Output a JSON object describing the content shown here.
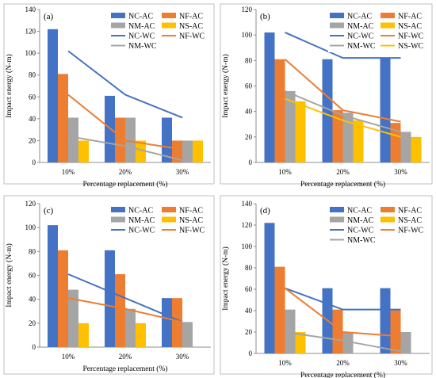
{
  "figure": {
    "colors": {
      "NC-AC": "#4472C4",
      "NF-AC": "#ED7D31",
      "NM-AC": "#A5A5A5",
      "NS-AC": "#FFC000",
      "NC-WC": "#4472C4",
      "NF-WC": "#ED7D31",
      "NM-WC": "#A5A5A5",
      "NS-WC": "#FFC000"
    }
  },
  "chart_data": [
    {
      "panel_label": "(a)",
      "type": "bar",
      "categories": [
        "10%",
        "20%",
        "30%"
      ],
      "xlabel": "Percentage replacement (%)",
      "ylabel": "Impact energy (N-m)",
      "ylim": [
        0,
        140
      ],
      "yticks": [
        0,
        20,
        40,
        60,
        80,
        100,
        120,
        140
      ],
      "legend_columns": 2,
      "series": [
        {
          "name": "NC-AC",
          "kind": "bar",
          "values": [
            122,
            61,
            41
          ]
        },
        {
          "name": "NF-AC",
          "kind": "bar",
          "values": [
            81,
            41,
            20
          ]
        },
        {
          "name": "NM-AC",
          "kind": "bar",
          "values": [
            41,
            41,
            20
          ]
        },
        {
          "name": "NS-AC",
          "kind": "bar",
          "values": [
            20,
            20,
            20
          ]
        },
        {
          "name": "NC-WC",
          "kind": "line",
          "values": [
            102,
            62,
            41
          ]
        },
        {
          "name": "NF-WC",
          "kind": "line",
          "values": [
            62,
            20,
            12
          ]
        },
        {
          "name": "NM-WC",
          "kind": "line",
          "values": [
            24,
            15,
            2
          ]
        }
      ]
    },
    {
      "panel_label": "(b)",
      "type": "bar",
      "categories": [
        "10%",
        "20%",
        "30%"
      ],
      "xlabel": "Percentage replacement (%)",
      "ylabel": "Impact energy (N-m)",
      "ylim": [
        0,
        120
      ],
      "yticks": [
        0,
        20,
        40,
        60,
        80,
        100,
        120
      ],
      "legend_columns": 2,
      "series": [
        {
          "name": "NC-AC",
          "kind": "bar",
          "values": [
            102,
            81,
            82
          ]
        },
        {
          "name": "NF-AC",
          "kind": "bar",
          "values": [
            81,
            41,
            31
          ]
        },
        {
          "name": "NM-AC",
          "kind": "bar",
          "values": [
            56,
            39,
            24
          ]
        },
        {
          "name": "NS-AC",
          "kind": "bar",
          "values": [
            48,
            33,
            20
          ]
        },
        {
          "name": "NC-WC",
          "kind": "line",
          "values": [
            102,
            82,
            82
          ]
        },
        {
          "name": "NF-WC",
          "kind": "line",
          "values": [
            81,
            41,
            32
          ]
        },
        {
          "name": "NM-WC",
          "kind": "line",
          "values": [
            56,
            37,
            24
          ]
        },
        {
          "name": "NS-WC",
          "kind": "line",
          "values": [
            50,
            33,
            20
          ]
        }
      ]
    },
    {
      "panel_label": "(c)",
      "type": "bar",
      "categories": [
        "10%",
        "20%",
        "30%"
      ],
      "xlabel": "Percentage replacement (%)",
      "ylabel": "Impact energy (N-m)",
      "ylim": [
        0,
        120
      ],
      "yticks": [
        0,
        20,
        40,
        60,
        80,
        100,
        120
      ],
      "legend_columns": 2,
      "series": [
        {
          "name": "NC-AC",
          "kind": "bar",
          "values": [
            102,
            81,
            41
          ]
        },
        {
          "name": "NF-AC",
          "kind": "bar",
          "values": [
            81,
            61,
            41
          ]
        },
        {
          "name": "NM-AC",
          "kind": "bar",
          "values": [
            48,
            32,
            21
          ]
        },
        {
          "name": "NS-AC",
          "kind": "bar",
          "values": [
            20,
            20,
            0
          ]
        },
        {
          "name": "NC-WC",
          "kind": "line",
          "values": [
            61,
            41,
            21
          ]
        },
        {
          "name": "NF-WC",
          "kind": "line",
          "values": [
            41,
            32,
            21
          ]
        }
      ]
    },
    {
      "panel_label": "(d)",
      "type": "bar",
      "categories": [
        "10%",
        "20%",
        "30%"
      ],
      "xlabel": "Percentage replacement (%)",
      "ylabel": "Impact energy (N-m)",
      "ylim": [
        0,
        140
      ],
      "yticks": [
        0,
        20,
        40,
        60,
        80,
        100,
        120,
        140
      ],
      "legend_columns": 2,
      "series": [
        {
          "name": "NC-AC",
          "kind": "bar",
          "values": [
            122,
            61,
            61
          ]
        },
        {
          "name": "NF-AC",
          "kind": "bar",
          "values": [
            81,
            41,
            41
          ]
        },
        {
          "name": "NM-AC",
          "kind": "bar",
          "values": [
            41,
            20,
            20
          ]
        },
        {
          "name": "NS-AC",
          "kind": "bar",
          "values": [
            20,
            0,
            0
          ]
        },
        {
          "name": "NC-WC",
          "kind": "line",
          "values": [
            61,
            41,
            41
          ]
        },
        {
          "name": "NF-WC",
          "kind": "line",
          "values": [
            61,
            20,
            16
          ]
        },
        {
          "name": "NM-WC",
          "kind": "line",
          "values": [
            20,
            12,
            2
          ]
        }
      ]
    }
  ]
}
